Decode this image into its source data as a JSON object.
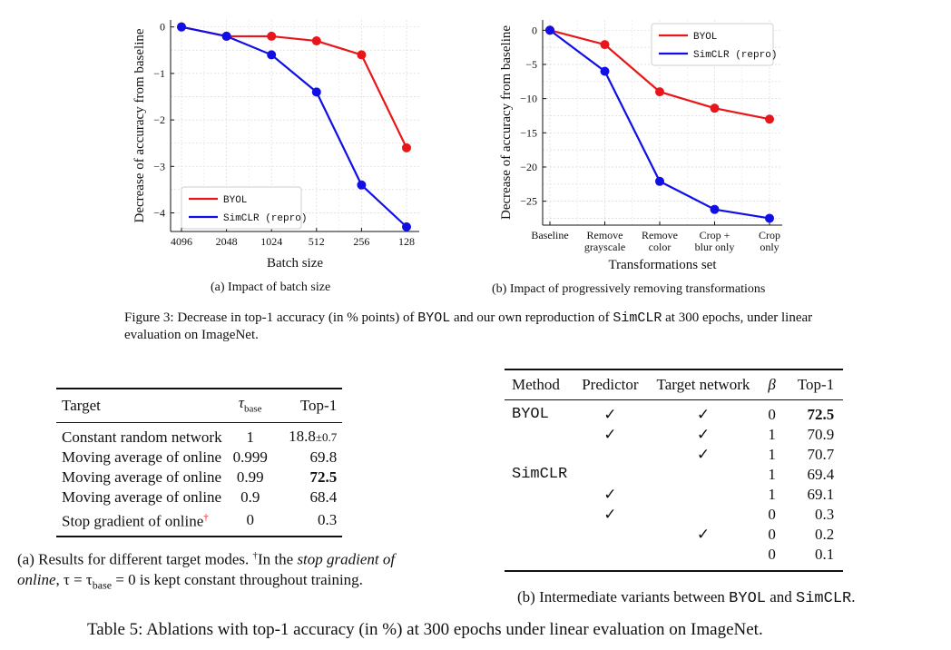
{
  "figure3": {
    "chart_data": [
      {
        "type": "line",
        "subcaption": "(a) Impact of batch size",
        "xlabel": "Batch size",
        "ylabel": "Decrease of accuracy from baseline",
        "categories": [
          "4096",
          "2048",
          "1024",
          "512",
          "256",
          "128"
        ],
        "ylim": [
          -4.4,
          0.15
        ],
        "yticks": [
          0,
          -1,
          -2,
          -3,
          -4
        ],
        "ytick_labels": [
          "0",
          "−1",
          "−2",
          "−3",
          "−4"
        ],
        "grid": true,
        "legend_position": "bottom-left",
        "series": [
          {
            "name": "BYOL",
            "color": "#e8161b",
            "values": [
              0,
              -0.2,
              -0.2,
              -0.3,
              -0.6,
              -2.6
            ]
          },
          {
            "name": "SimCLR (repro)",
            "color": "#1010e6",
            "values": [
              0,
              -0.2,
              -0.6,
              -1.4,
              -3.4,
              -4.3
            ]
          }
        ]
      },
      {
        "type": "line",
        "subcaption": "(b) Impact of progressively removing transformations",
        "xlabel": "Transformations set",
        "ylabel": "Decrease of accuracy from baseline",
        "categories": [
          "Baseline",
          "Remove grayscale",
          "Remove color",
          "Crop + blur only",
          "Crop only"
        ],
        "category_lines": [
          [
            "Baseline"
          ],
          [
            "Remove",
            "grayscale"
          ],
          [
            "Remove",
            "color"
          ],
          [
            "Crop +",
            "blur only"
          ],
          [
            "Crop",
            "only"
          ]
        ],
        "ylim": [
          -28.5,
          1.5
        ],
        "yticks": [
          0,
          -5,
          -10,
          -15,
          -20,
          -25
        ],
        "ytick_labels": [
          "0",
          "−5",
          "−10",
          "−15",
          "−20",
          "−25"
        ],
        "grid": true,
        "legend_position": "top-right",
        "series": [
          {
            "name": "BYOL",
            "color": "#e8161b",
            "values": [
              0,
              -2.1,
              -9.0,
              -11.4,
              -13.0
            ]
          },
          {
            "name": "SimCLR (repro)",
            "color": "#1010e6",
            "values": [
              0,
              -6.0,
              -22.1,
              -26.2,
              -27.5
            ]
          }
        ]
      }
    ],
    "caption": {
      "prefix": "Figure 3: Decrease in top-1 accuracy (in % points) of ",
      "byol": "BYOL",
      "middle": " and our own reproduction of ",
      "simclr": "SimCLR",
      "suffix": " at 300 epochs, under linear evaluation on ImageNet."
    }
  },
  "table5a": {
    "headers": {
      "target": "Target",
      "tau": "τ",
      "tau_sub": "base",
      "top1": "Top-1"
    },
    "rows": [
      {
        "target": "Constant random network",
        "tau": "1",
        "top1": "18.8",
        "top1_pm": "±0.7"
      },
      {
        "target": "Moving average of online",
        "tau": "0.999",
        "top1": "69.8"
      },
      {
        "target": "Moving average of online",
        "tau": "0.99",
        "top1": "72.5"
      },
      {
        "target": "Moving average of online",
        "tau": "0.9",
        "top1": "68.4"
      },
      {
        "target": "Stop gradient of online",
        "tau": "0",
        "top1": "0.3"
      }
    ],
    "caption": {
      "line1_prefix": "(a) Results for different target modes. ",
      "dagger": "†",
      "line1_mid": "In the ",
      "line1_italic": "stop gradient of",
      "line2_italic": "online",
      "line2_math": ", τ = τ",
      "line2_sub": "base",
      "line2_rest": " = 0 is kept constant throughout training."
    }
  },
  "table5b": {
    "headers": {
      "method": "Method",
      "predictor": "Predictor",
      "target": "Target network",
      "beta": "β",
      "top1": "Top-1"
    },
    "check": "✓",
    "rows": [
      {
        "method": "BYOL",
        "predictor": "✓",
        "target": "✓",
        "beta": "0",
        "top1": "72.5"
      },
      {
        "method": "",
        "predictor": "✓",
        "target": "✓",
        "beta": "1",
        "top1": "70.9"
      },
      {
        "method": "",
        "predictor": "",
        "target": "✓",
        "beta": "1",
        "top1": "70.7"
      },
      {
        "method": "SimCLR",
        "predictor": "",
        "target": "",
        "beta": "1",
        "top1": "69.4"
      },
      {
        "method": "",
        "predictor": "✓",
        "target": "",
        "beta": "1",
        "top1": "69.1"
      },
      {
        "method": "",
        "predictor": "✓",
        "target": "",
        "beta": "0",
        "top1": "0.3"
      },
      {
        "method": "",
        "predictor": "",
        "target": "✓",
        "beta": "0",
        "top1": "0.2"
      },
      {
        "method": "",
        "predictor": "",
        "target": "",
        "beta": "0",
        "top1": "0.1"
      }
    ],
    "caption": {
      "prefix": "(b) Intermediate variants between ",
      "byol": "BYOL",
      "middle": " and ",
      "simclr": "SimCLR",
      "suffix": "."
    }
  },
  "table5": {
    "caption": "Table 5: Ablations with top-1 accuracy (in %) at 300 epochs under linear evaluation on ImageNet."
  }
}
